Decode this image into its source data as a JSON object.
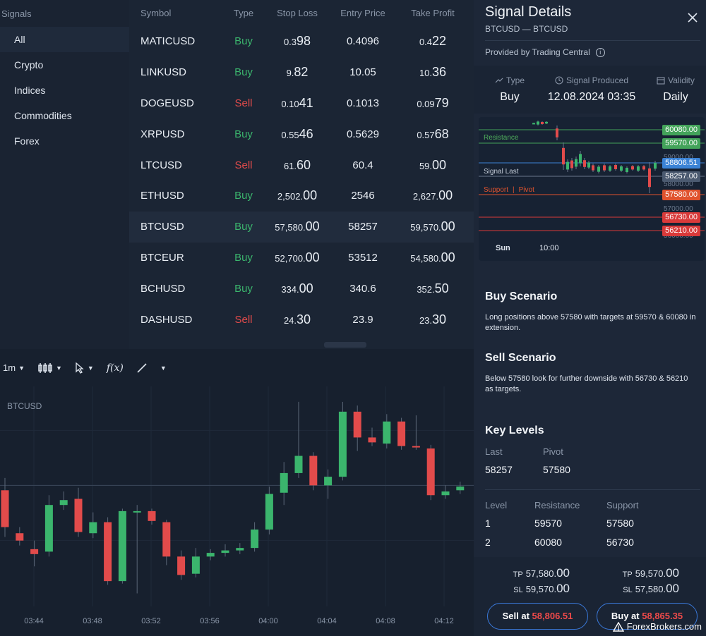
{
  "colors": {
    "buy": "#3bb56d",
    "sell": "#e24b4b",
    "resistance": "#4fae5c",
    "support": "#e0532e",
    "last": "#3b83d6",
    "accent": "#3a78d8"
  },
  "sidebar": {
    "header": "Signals",
    "items": [
      {
        "label": "All"
      },
      {
        "label": "Crypto"
      },
      {
        "label": "Indices"
      },
      {
        "label": "Commodities"
      },
      {
        "label": "Forex"
      }
    ]
  },
  "table": {
    "headers": {
      "symbol": "Symbol",
      "type": "Type",
      "stop_loss": "Stop Loss",
      "entry_price": "Entry Price",
      "take_profit": "Take Profit"
    },
    "rows": [
      {
        "symbol": "MATICUSD",
        "type": "Buy",
        "sl_a": "0.3",
        "sl_b": "98",
        "entry": "0.4096",
        "tp_a": "0.4",
        "tp_b": "22"
      },
      {
        "symbol": "LINKUSD",
        "type": "Buy",
        "sl_a": "9.",
        "sl_b": "82",
        "entry": "10.05",
        "tp_a": "10.",
        "tp_b": "36"
      },
      {
        "symbol": "DOGEUSD",
        "type": "Sell",
        "sl_a": "0.10",
        "sl_b": "41",
        "entry": "0.1013",
        "tp_a": "0.09",
        "tp_b": "79"
      },
      {
        "symbol": "XRPUSD",
        "type": "Buy",
        "sl_a": "0.55",
        "sl_b": "46",
        "entry": "0.5629",
        "tp_a": "0.57",
        "tp_b": "68"
      },
      {
        "symbol": "LTCUSD",
        "type": "Sell",
        "sl_a": "61.",
        "sl_b": "60",
        "entry": "60.4",
        "tp_a": "59.",
        "tp_b": "00"
      },
      {
        "symbol": "ETHUSD",
        "type": "Buy",
        "sl_a": "2,502.",
        "sl_b": "00",
        "entry": "2546",
        "tp_a": "2,627.",
        "tp_b": "00"
      },
      {
        "symbol": "BTCUSD",
        "type": "Buy",
        "sl_a": "57,580.",
        "sl_b": "00",
        "entry": "58257",
        "tp_a": "59,570.",
        "tp_b": "00"
      },
      {
        "symbol": "BTCEUR",
        "type": "Buy",
        "sl_a": "52,700.",
        "sl_b": "00",
        "entry": "53512",
        "tp_a": "54,580.",
        "tp_b": "00"
      },
      {
        "symbol": "BCHUSD",
        "type": "Buy",
        "sl_a": "334.",
        "sl_b": "00",
        "entry": "340.6",
        "tp_a": "352.",
        "tp_b": "50"
      },
      {
        "symbol": "DASHUSD",
        "type": "Sell",
        "sl_a": "24.",
        "sl_b": "30",
        "entry": "23.9",
        "tp_a": "23.",
        "tp_b": "30"
      }
    ]
  },
  "toolbar": {
    "interval": "1m",
    "fx_label": "f(x)"
  },
  "chart": {
    "symbol_label": "BTCUSD",
    "x_ticks": [
      "03:44",
      "03:48",
      "03:52",
      "03:56",
      "04:00",
      "04:04",
      "04:08",
      "04:12"
    ],
    "candles": [
      {
        "o": 14,
        "c": 11,
        "h": 15,
        "l": 10.2
      },
      {
        "o": 10.5,
        "c": 9.9,
        "h": 11,
        "l": 9.5
      },
      {
        "o": 9.2,
        "c": 8.8,
        "h": 9.9,
        "l": 7.8
      },
      {
        "o": 9,
        "c": 12.8,
        "h": 13.6,
        "l": 8.6
      },
      {
        "o": 12.8,
        "c": 13.2,
        "h": 13.9,
        "l": 12.4
      },
      {
        "o": 13.3,
        "c": 10.6,
        "h": 14.2,
        "l": 10.2
      },
      {
        "o": 10.5,
        "c": 11.4,
        "h": 12.2,
        "l": 10.1
      },
      {
        "o": 11.4,
        "c": 6.6,
        "h": 11.8,
        "l": 6.3
      },
      {
        "o": 6.6,
        "c": 12.3,
        "h": 12.5,
        "l": 6.4
      },
      {
        "o": 12.3,
        "c": 12.3,
        "h": 12.8,
        "l": 5.6
      },
      {
        "o": 12.3,
        "c": 11.5,
        "h": 12.5,
        "l": 11.2
      },
      {
        "o": 11.4,
        "c": 8.6,
        "h": 11.6,
        "l": 7.9
      },
      {
        "o": 8.6,
        "c": 7.1,
        "h": 9.1,
        "l": 6.7
      },
      {
        "o": 7.2,
        "c": 8.6,
        "h": 9.3,
        "l": 6.9
      },
      {
        "o": 8.6,
        "c": 8.9,
        "h": 9.2,
        "l": 8.3
      },
      {
        "o": 8.9,
        "c": 9.1,
        "h": 9.6,
        "l": 8.6
      },
      {
        "o": 9.1,
        "c": 9.3,
        "h": 9.7,
        "l": 8.8
      },
      {
        "o": 9.3,
        "c": 10.8,
        "h": 11.4,
        "l": 9.0
      },
      {
        "o": 10.8,
        "c": 13.7,
        "h": 14.3,
        "l": 10.4
      },
      {
        "o": 13.8,
        "c": 15.4,
        "h": 16.3,
        "l": 12.8
      },
      {
        "o": 15.4,
        "c": 16.8,
        "h": 21.2,
        "l": 15.0
      },
      {
        "o": 16.8,
        "c": 14.4,
        "h": 17.1,
        "l": 14.0
      },
      {
        "o": 14.4,
        "c": 15.1,
        "h": 15.7,
        "l": 13.3
      },
      {
        "o": 15.1,
        "c": 20.4,
        "h": 21.2,
        "l": 14.8
      },
      {
        "o": 20.4,
        "c": 18.3,
        "h": 20.9,
        "l": 17.2
      },
      {
        "o": 18.3,
        "c": 17.9,
        "h": 19.1,
        "l": 17.6
      },
      {
        "o": 17.8,
        "c": 19.6,
        "h": 20.2,
        "l": 17.4
      },
      {
        "o": 19.6,
        "c": 17.6,
        "h": 19.9,
        "l": 17.3
      },
      {
        "o": 17.6,
        "c": 17.5,
        "h": 20.1,
        "l": 17.3
      },
      {
        "o": 17.4,
        "c": 13.6,
        "h": 17.7,
        "l": 13.2
      },
      {
        "o": 13.6,
        "c": 13.9,
        "h": 14.4,
        "l": 13.3
      },
      {
        "o": 14.0,
        "c": 14.3,
        "h": 14.7,
        "l": 13.7
      }
    ]
  },
  "details": {
    "title": "Signal Details",
    "subtitle": "BTCUSD — BTCUSD",
    "provided_by": "Provided by Trading Central",
    "type_label": "Type",
    "type_value": "Buy",
    "produced_label": "Signal Produced",
    "produced_value": "12.08.2024 03:35",
    "validity_label": "Validity",
    "validity_value": "Daily",
    "mini_chart": {
      "resistance_label": "Resistance",
      "last_label": "Signal Last",
      "support_label": "Support",
      "pivot_label": "Pivot",
      "separator": "|",
      "levels": [
        {
          "value": "60080.00",
          "color": "#43a35a"
        },
        {
          "value": "59570.00",
          "color": "#43a35a"
        },
        {
          "value": "58806.51",
          "color": "#3b83d6"
        },
        {
          "value": "58257.00",
          "color": "#4b5a70"
        },
        {
          "value": "57580.00",
          "color": "#e0532e"
        },
        {
          "value": "56730.00",
          "color": "#d93a3a"
        },
        {
          "value": "56210.00",
          "color": "#d93a3a"
        }
      ],
      "axis_ticks": [
        "59000.00",
        "58000.00",
        "57000.00",
        "56000.00"
      ],
      "x_labels": [
        "Sun",
        "10:00"
      ]
    },
    "buy_title": "Buy Scenario",
    "buy_text": "Long positions above 57580 with targets at 59570 & 60080 in extension.",
    "sell_title": "Sell Scenario",
    "sell_text": "Below 57580 look for further downside with 56730 & 56210 as targets.",
    "key_levels_title": "Key Levels",
    "last_label": "Last",
    "last_value": "58257",
    "pivot_label": "Pivot",
    "pivot_value": "57580",
    "levels_header": {
      "level": "Level",
      "resistance": "Resistance",
      "support": "Support"
    },
    "levels": [
      {
        "level": "1",
        "resistance": "59570",
        "support": "57580"
      },
      {
        "level": "2",
        "resistance": "60080",
        "support": "56730"
      }
    ],
    "sell_side": {
      "tp_label": "TP",
      "tp_a": "57,580.",
      "tp_b": "00",
      "sl_label": "SL",
      "sl_a": "59,570.",
      "sl_b": "00"
    },
    "buy_side": {
      "tp_label": "TP",
      "tp_a": "59,570.",
      "tp_b": "00",
      "sl_label": "SL",
      "sl_a": "57,580.",
      "sl_b": "00"
    },
    "sell_button": {
      "label": "Sell at",
      "price": "58,806.51"
    },
    "buy_button": {
      "label": "Buy at",
      "price": "58,865.35"
    }
  },
  "watermark": "ForexBrokers.com"
}
